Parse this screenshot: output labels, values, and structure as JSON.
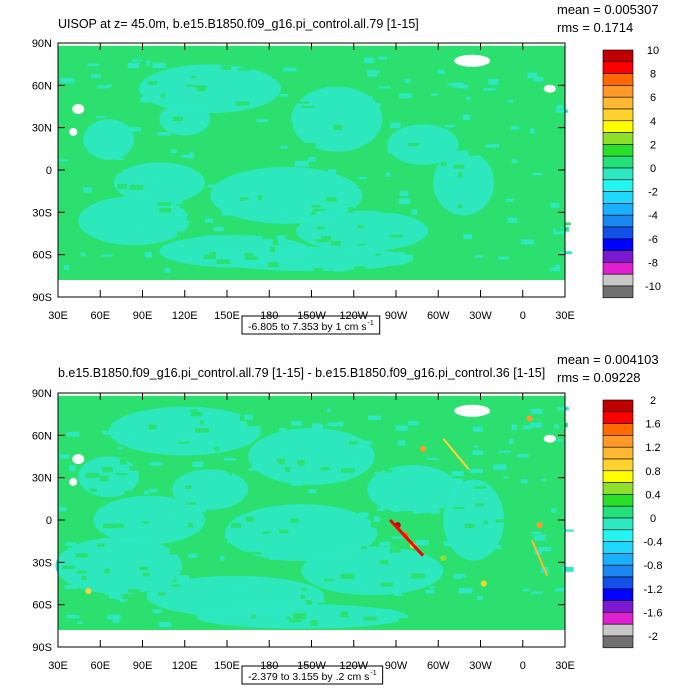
{
  "chart_data": [
    {
      "type": "heatmap",
      "title": "UISOP at z=  45.0m, b.e15.B1850.f09_g16.pi_control.all.79 [1-15]",
      "stats": {
        "mean": "mean = 0.005307",
        "rms": "rms = 0.1714"
      },
      "x_ticks": [
        "30E",
        "60E",
        "90E",
        "120E",
        "150E",
        "180",
        "150W",
        "120W",
        "90W",
        "60W",
        "30W",
        "0",
        "30E"
      ],
      "y_ticks": [
        "90N",
        "60N",
        "30N",
        "0",
        "30S",
        "60S",
        "90S"
      ],
      "range_label": "-6.805 to 7.353 by 1 cm s",
      "range_unit_sup": "-1",
      "colorbar": {
        "labels": [
          "10",
          "8",
          "6",
          "4",
          "2",
          "0",
          "-2",
          "-4",
          "-6",
          "-8",
          "-10"
        ],
        "colors": [
          "#c00000",
          "#ff0000",
          "#ff6a00",
          "#ff9a2a",
          "#ffb833",
          "#ffd22e",
          "#ffff00",
          "#8ee02a",
          "#2adf2a",
          "#22e07a",
          "#2de8c0",
          "#24f5f0",
          "#20d8ff",
          "#18b0ff",
          "#1a88f0",
          "#1450e8",
          "#0000ff",
          "#7c18d0",
          "#e020d0",
          "#c8c8c8",
          "#707070"
        ]
      },
      "field_colors": {
        "dominant": "#2be06e",
        "secondary": "#2de8c0",
        "missing": "#ffffff"
      }
    },
    {
      "type": "heatmap",
      "title": "b.e15.B1850.f09_g16.pi_control.all.79 [1-15] - b.e15.B1850.f09_g16.pi_control.36 [1-15]",
      "stats": {
        "mean": "mean = 0.004103",
        "rms": "rms = 0.09228"
      },
      "x_ticks": [
        "30E",
        "60E",
        "90E",
        "120E",
        "150E",
        "180",
        "150W",
        "120W",
        "90W",
        "60W",
        "30W",
        "0",
        "30E"
      ],
      "y_ticks": [
        "90N",
        "60N",
        "30N",
        "0",
        "30S",
        "60S",
        "90S"
      ],
      "range_label": "-2.379 to 3.155 by .2 cm s",
      "range_unit_sup": "-1",
      "colorbar": {
        "labels": [
          "2",
          "1.6",
          "1.2",
          "0.8",
          "0.4",
          "0",
          "-0.4",
          "-0.8",
          "-1.2",
          "-1.6",
          "-2"
        ],
        "colors": [
          "#c00000",
          "#ff0000",
          "#ff6a00",
          "#ff9a2a",
          "#ffb833",
          "#ffd22e",
          "#ffff00",
          "#8ee02a",
          "#2adf2a",
          "#22e07a",
          "#2de8c0",
          "#24f5f0",
          "#20d8ff",
          "#18b0ff",
          "#1a88f0",
          "#1450e8",
          "#0000ff",
          "#7c18d0",
          "#e020d0",
          "#c8c8c8",
          "#707070"
        ]
      },
      "field_colors": {
        "dominant": "#2be06e",
        "secondary": "#2de8c0",
        "missing": "#ffffff"
      }
    }
  ]
}
